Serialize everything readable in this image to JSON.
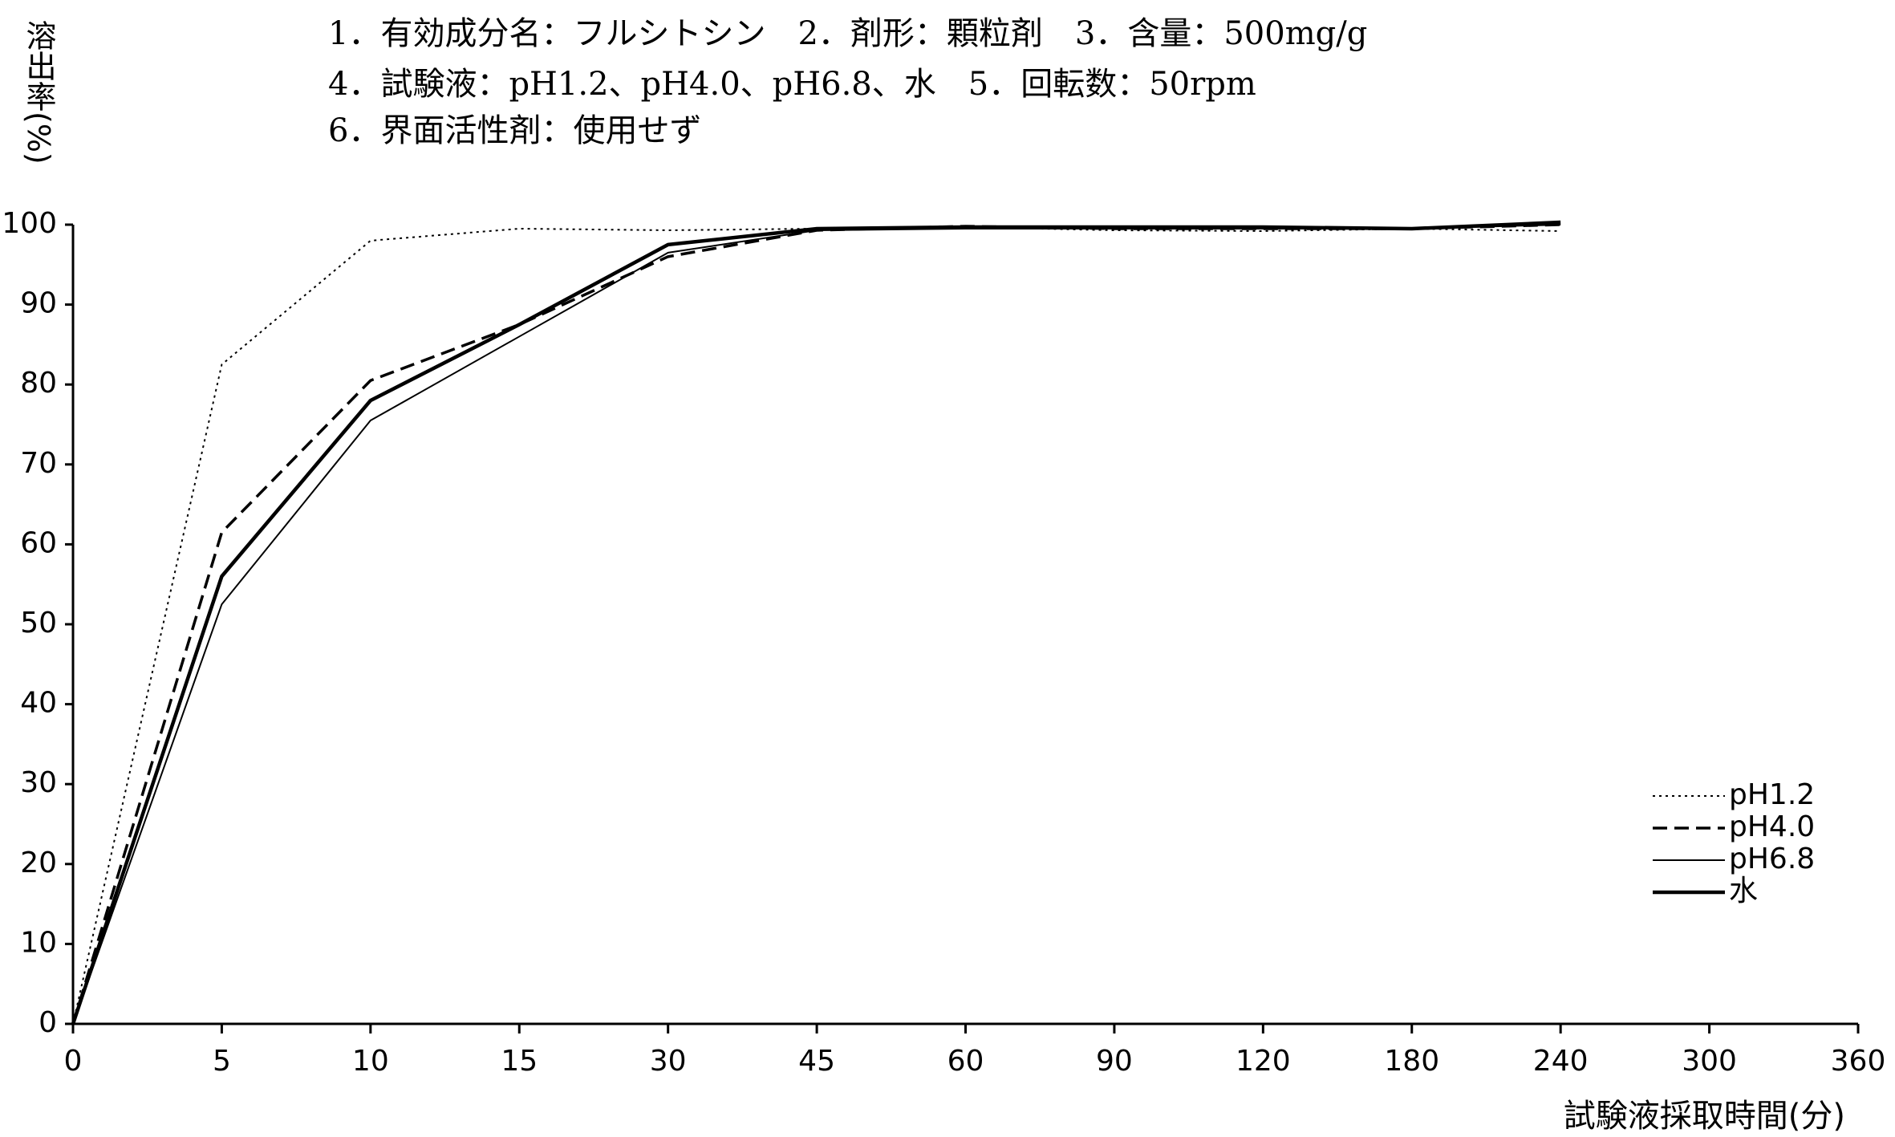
{
  "chart_data": {
    "type": "line",
    "notes": [
      "1．有効成分名：フルシトシン　2．剤形：顆粒剤　3．含量：500mg/g",
      "4．試験液：pH1.2、pH4.0、pH6.8、水　5．回転数：50rpm",
      "6．界面活性剤：使用せず"
    ],
    "y_label": "溶出率(%)",
    "x_label": "試験液採取時間(分)",
    "categories": [
      "0",
      "5",
      "10",
      "15",
      "30",
      "45",
      "60",
      "90",
      "120",
      "180",
      "240",
      "300",
      "360"
    ],
    "series": [
      {
        "name": "pH1.2",
        "color": "#000000",
        "line_style": "dotted",
        "values": [
          0,
          82.5,
          98,
          99.5,
          99.3,
          99.5,
          99.7,
          99.3,
          99.2,
          99.5,
          99.2,
          null,
          null
        ]
      },
      {
        "name": "pH4.0",
        "color": "#000000",
        "line_style": "dashed",
        "values": [
          0,
          61.5,
          80.5,
          87.5,
          96,
          99.3,
          99.8,
          99.5,
          99.5,
          99.5,
          100,
          null,
          null
        ]
      },
      {
        "name": "pH6.8",
        "color": "#000000",
        "line_style": "solid",
        "values": [
          0,
          52.5,
          75.5,
          86,
          96.5,
          99.3,
          99.5,
          99.5,
          99.5,
          99.5,
          100,
          null,
          null
        ]
      },
      {
        "name": "水",
        "color": "#000000",
        "line_style": "thick",
        "values": [
          0,
          56,
          78,
          87.5,
          97.5,
          99.5,
          99.7,
          99.7,
          99.7,
          99.5,
          100.3,
          null,
          null
        ]
      }
    ],
    "ylim": [
      0,
      100
    ],
    "yticks": [
      0,
      10,
      20,
      30,
      40,
      50,
      60,
      70,
      80,
      90,
      100
    ],
    "legend": "lower right"
  }
}
